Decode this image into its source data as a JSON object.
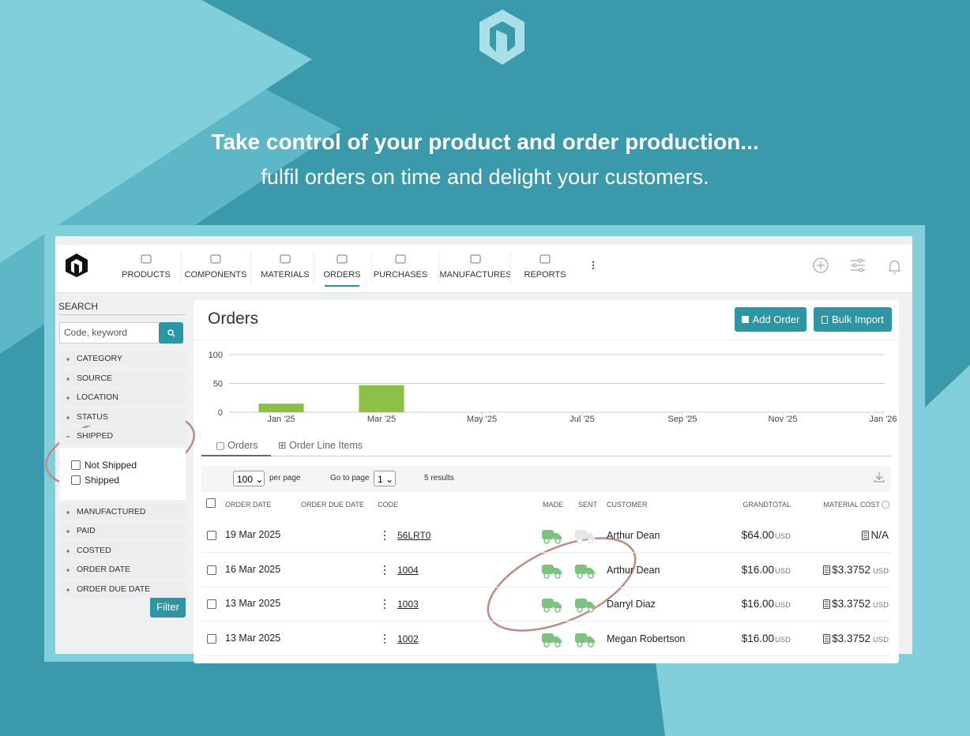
{
  "headline": "Take control of your product and order production...",
  "subheadline": "fulfil orders on time and delight your customers.",
  "nav": [
    {
      "label": "PRODUCTS"
    },
    {
      "label": "COMPONENTS"
    },
    {
      "label": "MATERIALS"
    },
    {
      "label": "ORDERS",
      "active": true
    },
    {
      "label": "PURCHASES"
    },
    {
      "label": "MANUFACTURES"
    },
    {
      "label": "REPORTS"
    }
  ],
  "sidebar": {
    "search_label": "SEARCH",
    "search_placeholder": "Code, keyword",
    "filters": [
      {
        "label": "CATEGORY"
      },
      {
        "label": "SOURCE"
      },
      {
        "label": "LOCATION"
      },
      {
        "label": "STATUS"
      },
      {
        "label": "SHIPPED",
        "expanded": true,
        "options": [
          "Not Shipped",
          "Shipped"
        ]
      },
      {
        "label": "MANUFACTURED"
      },
      {
        "label": "PAID"
      },
      {
        "label": "COSTED"
      },
      {
        "label": "ORDER DATE"
      },
      {
        "label": "ORDER DUE DATE"
      }
    ],
    "filter_button": "Filter"
  },
  "page_title": "Orders",
  "buttons": [
    "Add Order",
    "Bulk Import"
  ],
  "chart_data": {
    "type": "bar",
    "categories": [
      "Jan '25",
      null,
      "Mar '25",
      null,
      "May '25",
      null,
      "Jul '25",
      null,
      "Sep '25",
      null,
      "Nov '25",
      null,
      "Jan '26"
    ],
    "values": [
      15,
      0,
      47,
      0,
      0,
      0,
      0,
      0,
      0,
      0,
      0,
      0,
      0
    ],
    "color": "#8dc047",
    "ylim": [
      0,
      100
    ],
    "yticks": [
      0,
      50,
      100
    ],
    "grid": true
  },
  "tabs": [
    "Orders",
    "Order Line Items"
  ],
  "toolbar": {
    "per_page": "100",
    "per_page_label": "per page",
    "go_to_page_label": "Go to page",
    "page": "1",
    "results": "5 results"
  },
  "table": {
    "headers": [
      "ORDER DATE",
      "ORDER DUE DATE",
      "CODE",
      "MADE",
      "SENT",
      "CUSTOMER",
      "GRANDTOTAL",
      "MATERIAL COST"
    ],
    "rows": [
      {
        "date": "19 Mar 2025",
        "code": "56LRT0",
        "sent": false,
        "customer": "Arthur Dean",
        "total": "$64.00",
        "total_currency": "USD",
        "material_cost": "N/A"
      },
      {
        "date": "16 Mar 2025",
        "code": "1004",
        "sent": true,
        "customer": "Arthur Dean",
        "total": "$16.00",
        "total_currency": "USD",
        "material_cost": "$3.3752",
        "material_cost_currency": "USD"
      },
      {
        "date": "13 Mar 2025",
        "code": "1003",
        "sent": true,
        "customer": "Darryl Diaz",
        "total": "$16.00",
        "total_currency": "USD",
        "material_cost": "$3.3752",
        "material_cost_currency": "USD"
      },
      {
        "date": "13 Mar 2025",
        "code": "1002",
        "sent": true,
        "customer": "Megan Robertson",
        "total": "$16.00",
        "total_currency": "USD",
        "material_cost": "$3.3752",
        "material_cost_currency": "USD"
      }
    ]
  }
}
